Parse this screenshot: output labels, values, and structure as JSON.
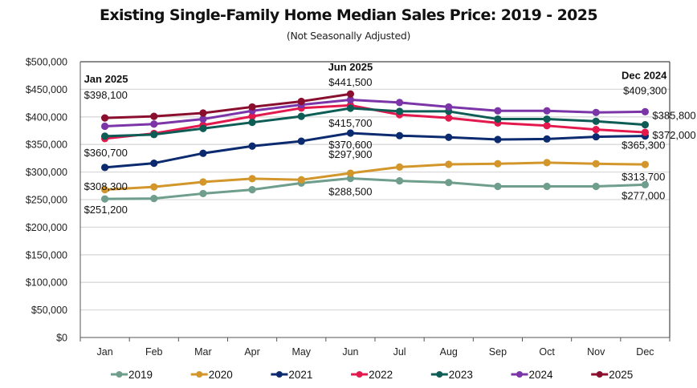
{
  "chart_data": {
    "type": "line",
    "title": "Existing Single-Family Home Median Sales Price: 2019 - 2025",
    "subtitle": "(Not Seasonally Adjusted)",
    "xlabel": "",
    "ylabel": "",
    "categories": [
      "Jan",
      "Feb",
      "Mar",
      "Apr",
      "May",
      "Jun",
      "Jul",
      "Aug",
      "Sep",
      "Oct",
      "Nov",
      "Dec"
    ],
    "ylim": [
      0,
      500000
    ],
    "y_ticks": [
      0,
      50000,
      100000,
      150000,
      200000,
      250000,
      300000,
      350000,
      400000,
      450000,
      500000
    ],
    "y_tick_labels": [
      "$0",
      "$50,000",
      "$100,000",
      "$150,000",
      "$200,000",
      "$250,000",
      "$300,000",
      "$350,000",
      "$400,000",
      "$450,000",
      "$500,000"
    ],
    "grid": true,
    "legend_position": "bottom",
    "series": [
      {
        "name": "2019",
        "color": "#6f9e8c",
        "values": [
          251200,
          252000,
          261000,
          268000,
          280000,
          288500,
          284000,
          281000,
          274000,
          274000,
          274000,
          277000
        ]
      },
      {
        "name": "2020",
        "color": "#d2962a",
        "values": [
          268000,
          273000,
          282000,
          288000,
          286000,
          297900,
          309000,
          314000,
          315000,
          317000,
          315000,
          313700
        ]
      },
      {
        "name": "2021",
        "color": "#0b2a6f",
        "values": [
          308300,
          316000,
          334000,
          347000,
          356000,
          370600,
          366000,
          363000,
          359000,
          360000,
          364000,
          365300
        ]
      },
      {
        "name": "2022",
        "color": "#e3194e",
        "values": [
          360700,
          370000,
          385000,
          401000,
          416000,
          421000,
          404000,
          398000,
          389000,
          384000,
          377000,
          372000
        ]
      },
      {
        "name": "2023",
        "color": "#0d5c55",
        "values": [
          365000,
          368000,
          379000,
          390000,
          401000,
          415700,
          410000,
          410000,
          396000,
          396000,
          392000,
          385800
        ]
      },
      {
        "name": "2024",
        "color": "#7b35a8",
        "values": [
          383000,
          387000,
          396000,
          411000,
          422000,
          431000,
          426000,
          418000,
          411000,
          411000,
          408000,
          409300
        ]
      },
      {
        "name": "2025",
        "color": "#8a0f2e",
        "values": [
          398100,
          401000,
          407000,
          418000,
          428000,
          441500
        ]
      }
    ],
    "annotations": [
      {
        "series": "2025",
        "month": "Jan",
        "header": "Jan 2025",
        "label": "$398,100"
      },
      {
        "series": "2022",
        "month": "Jan",
        "label": "$360,700"
      },
      {
        "series": "2021",
        "month": "Jan",
        "label": "$308,300"
      },
      {
        "series": "2019",
        "month": "Jan",
        "label": "$251,200"
      },
      {
        "series": "2025",
        "month": "Jun",
        "header": "Jun 2025",
        "label": "$441,500"
      },
      {
        "series": "2023",
        "month": "Jun",
        "label": "$415,700"
      },
      {
        "series": "2021",
        "month": "Jun",
        "label": "$370,600"
      },
      {
        "series": "2020",
        "month": "Jun",
        "label": "$297,900"
      },
      {
        "series": "2019",
        "month": "Jun",
        "label": "$288,500"
      },
      {
        "series": "2024",
        "month": "Dec",
        "header": "Dec 2024",
        "label": "$409,300"
      },
      {
        "series": "2023",
        "month": "Dec",
        "label": "$385,800"
      },
      {
        "series": "2022",
        "month": "Dec",
        "label": "$372,000"
      },
      {
        "series": "2021",
        "month": "Dec",
        "label": "$365,300"
      },
      {
        "series": "2020",
        "month": "Dec",
        "label": "$313,700"
      },
      {
        "series": "2019",
        "month": "Dec",
        "label": "$277,000"
      }
    ]
  }
}
